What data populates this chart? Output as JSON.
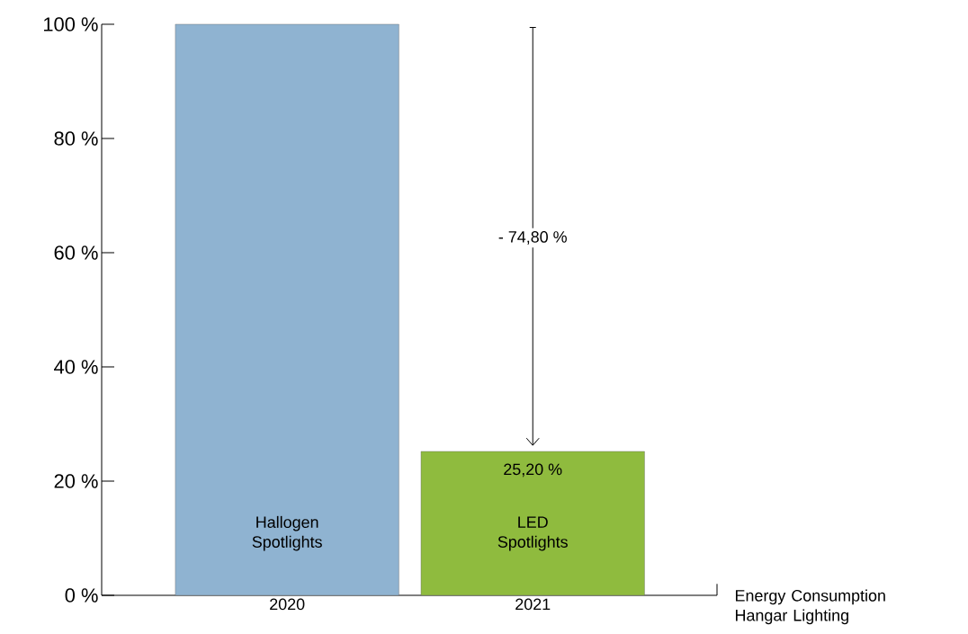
{
  "chart_data": {
    "type": "bar",
    "xlabel": "Energy Consumption Hangar Lighting",
    "categories": [
      "2020",
      "2021"
    ],
    "values": [
      100,
      25.2
    ],
    "colors": [
      "#8fb3d1",
      "#8fbb3e"
    ],
    "value_labels": [
      null,
      "25,20 %"
    ],
    "ylim": [
      0,
      100
    ],
    "yticks": [
      {
        "value": 0,
        "label": "0 %"
      },
      {
        "value": 20,
        "label": "20 %"
      },
      {
        "value": 40,
        "label": "40 %"
      },
      {
        "value": 60,
        "label": "60 %"
      },
      {
        "value": 80,
        "label": "80 %"
      },
      {
        "value": 100,
        "label": "100 %"
      }
    ],
    "annotations": [
      "Hallogen Spotlights",
      "LED Spotlights",
      "- 74,80 %"
    ]
  }
}
